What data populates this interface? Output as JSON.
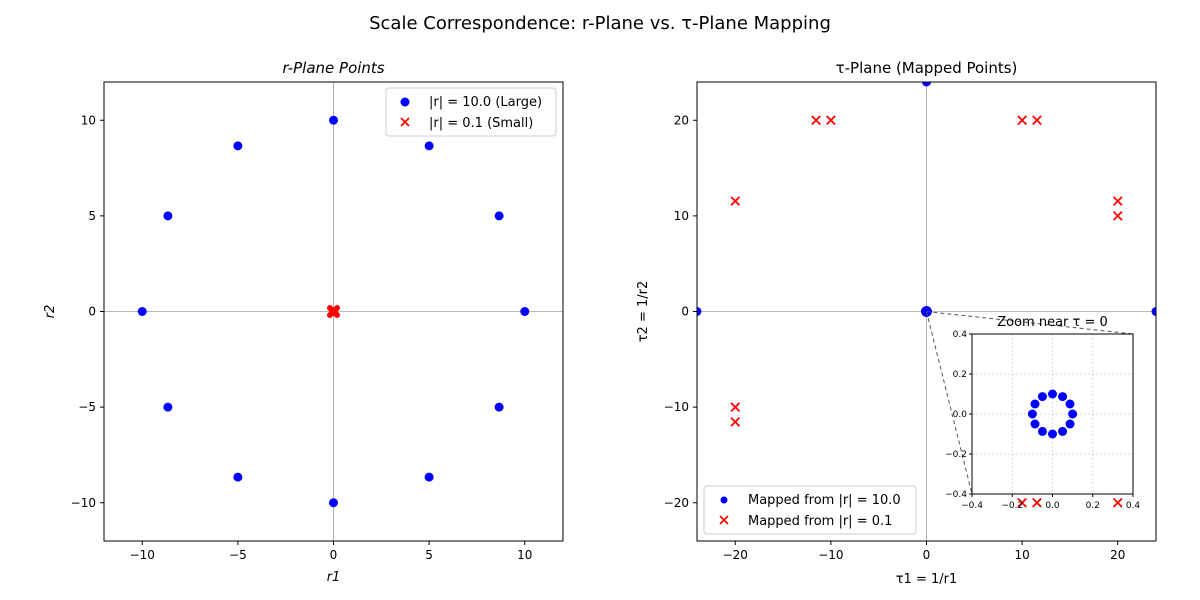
{
  "figure": {
    "suptitle": "Scale Correspondence: r-Plane vs. τ-Plane Mapping"
  },
  "colors": {
    "large": "#0000ff",
    "small": "#ff0000",
    "axis_line": "#a0a0a0",
    "zoom_line": "#555555"
  },
  "chart_data": [
    {
      "type": "scatter",
      "title": "r-Plane Points",
      "xlabel": "r1",
      "ylabel": "r2",
      "xlim": [
        -12,
        12
      ],
      "ylim": [
        -12,
        12
      ],
      "xticks": [
        -10,
        -5,
        0,
        5,
        10
      ],
      "yticks": [
        -10,
        -5,
        0,
        5,
        10
      ],
      "xtick_labels": [
        "−10",
        "−5",
        "0",
        "5",
        "10"
      ],
      "ytick_labels": [
        "−10",
        "−5",
        "0",
        "5",
        "10"
      ],
      "grid": false,
      "legend_position": "upper right",
      "series": [
        {
          "name": "|r| = 10.0 (Large)",
          "marker": "circle",
          "color": "#0000ff",
          "points": [
            [
              10,
              0
            ],
            [
              8.66,
              5
            ],
            [
              5,
              8.66
            ],
            [
              0,
              10
            ],
            [
              -5,
              8.66
            ],
            [
              -8.66,
              5
            ],
            [
              -10,
              0
            ],
            [
              -8.66,
              -5
            ],
            [
              -5,
              -8.66
            ],
            [
              0,
              -10
            ],
            [
              5,
              -8.66
            ],
            [
              8.66,
              -5
            ]
          ]
        },
        {
          "name": "|r| = 0.1 (Small)",
          "marker": "x",
          "color": "#ff0000",
          "points": [
            [
              0.1,
              0
            ],
            [
              0.087,
              0.05
            ],
            [
              0.05,
              0.087
            ],
            [
              0,
              0.1
            ],
            [
              -0.05,
              0.087
            ],
            [
              -0.087,
              0.05
            ],
            [
              -0.1,
              0
            ],
            [
              -0.087,
              -0.05
            ],
            [
              -0.05,
              -0.087
            ],
            [
              0,
              -0.1
            ],
            [
              0.05,
              -0.087
            ],
            [
              0.087,
              -0.05
            ]
          ]
        }
      ]
    },
    {
      "type": "scatter",
      "title": "τ-Plane (Mapped Points)",
      "xlabel": "τ1 = 1/r1",
      "ylabel": "τ2 = 1/r2",
      "xlim": [
        -24,
        24
      ],
      "ylim": [
        -24,
        24
      ],
      "xticks": [
        -20,
        -10,
        0,
        10,
        20
      ],
      "yticks": [
        -20,
        -10,
        0,
        10,
        20
      ],
      "xtick_labels": [
        "−20",
        "−10",
        "0",
        "10",
        "20"
      ],
      "ytick_labels": [
        "−20",
        "−10",
        "0",
        "10",
        "20"
      ],
      "grid": false,
      "legend_position": "lower left",
      "series": [
        {
          "name": "Mapped from |r| = 10.0",
          "marker": "circle",
          "color": "#0000ff",
          "points": [
            [
              0.1,
              0
            ],
            [
              0.087,
              0.05
            ],
            [
              0.05,
              0.087
            ],
            [
              0,
              0.1
            ],
            [
              -0.05,
              0.087
            ],
            [
              -0.087,
              0.05
            ],
            [
              -0.1,
              0
            ],
            [
              -0.087,
              -0.05
            ],
            [
              -0.05,
              -0.087
            ],
            [
              0,
              -0.1
            ],
            [
              0.05,
              -0.087
            ],
            [
              0.087,
              -0.05
            ],
            [
              0,
              24
            ],
            [
              -24,
              0
            ],
            [
              24,
              0
            ]
          ]
        },
        {
          "name": "Mapped from |r| = 0.1",
          "marker": "x",
          "color": "#ff0000",
          "points": [
            [
              11.55,
              20
            ],
            [
              20,
              11.55
            ],
            [
              20,
              10
            ],
            [
              10,
              20
            ],
            [
              -10,
              20
            ],
            [
              -11.55,
              20
            ],
            [
              -20,
              11.55
            ],
            [
              -20,
              -10
            ],
            [
              -20,
              -11.55
            ],
            [
              -11.55,
              -20
            ],
            [
              -10,
              -20
            ],
            [
              10,
              -20
            ],
            [
              11.55,
              -20
            ],
            [
              20,
              -20
            ]
          ]
        }
      ],
      "inset": {
        "title": "Zoom near τ = 0",
        "xlim": [
          -0.4,
          0.4
        ],
        "ylim": [
          -0.4,
          0.4
        ],
        "ticks": [
          -0.4,
          -0.2,
          0,
          0.2,
          0.4
        ],
        "tick_labels": [
          "−0.4",
          "−0.2",
          "0.0",
          "0.2",
          "0.4"
        ],
        "grid": true,
        "points": [
          [
            0.1,
            0
          ],
          [
            0.087,
            0.05
          ],
          [
            0.05,
            0.087
          ],
          [
            0,
            0.1
          ],
          [
            -0.05,
            0.087
          ],
          [
            -0.087,
            0.05
          ],
          [
            -0.1,
            0
          ],
          [
            -0.087,
            -0.05
          ],
          [
            -0.05,
            -0.087
          ],
          [
            0,
            -0.1
          ],
          [
            0.05,
            -0.087
          ],
          [
            0.087,
            -0.05
          ]
        ]
      }
    }
  ]
}
